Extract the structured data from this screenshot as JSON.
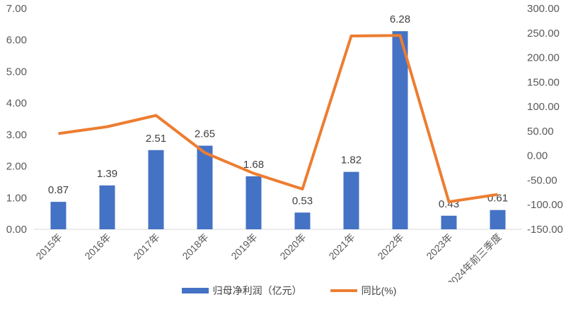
{
  "chart_data": {
    "type": "bar+line",
    "categories": [
      "2015年",
      "2016年",
      "2017年",
      "2018年",
      "2019年",
      "2020年",
      "2021年",
      "2022年",
      "2023年",
      "2024年前三季度"
    ],
    "series": [
      {
        "name": "归母净利润（亿元）",
        "type": "bar",
        "axis": "left",
        "color": "#4472C4",
        "values": [
          0.87,
          1.39,
          2.51,
          2.65,
          1.68,
          0.53,
          1.82,
          6.28,
          0.43,
          0.61
        ],
        "labels": [
          "0.87",
          "1.39",
          "2.51",
          "2.65",
          "1.68",
          "0.53",
          "1.82",
          "6.28",
          "0.43",
          "0.61"
        ]
      },
      {
        "name": "同比(%)",
        "type": "line",
        "axis": "right",
        "color": "#ED7D31",
        "values": [
          45,
          59,
          82,
          6,
          -36,
          -68,
          244,
          245,
          -94,
          -79
        ]
      }
    ],
    "y_left": {
      "range": [
        0,
        7
      ],
      "ticks": [
        "0.00",
        "1.00",
        "2.00",
        "3.00",
        "4.00",
        "5.00",
        "6.00",
        "7.00"
      ]
    },
    "y_right": {
      "range": [
        -150,
        300
      ],
      "ticks": [
        "-150.00",
        "-100.00",
        "-50.00",
        "0.00",
        "50.00",
        "100.00",
        "150.00",
        "200.00",
        "250.00",
        "300.00"
      ]
    },
    "grid": false,
    "legend": "bottom"
  }
}
